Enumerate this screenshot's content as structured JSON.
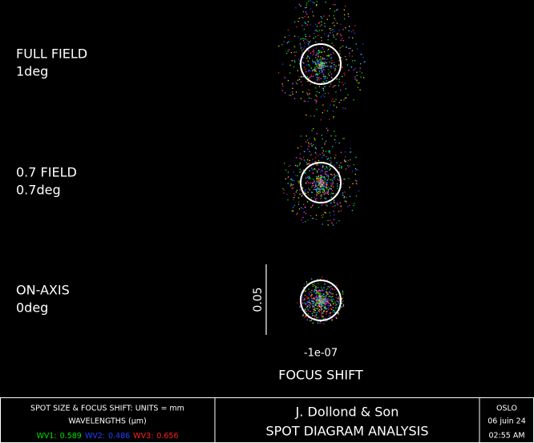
{
  "fields": [
    {
      "name": "FULL FIELD",
      "angle": "1deg"
    },
    {
      "name": "0.7 FIELD",
      "angle": "0.7deg"
    },
    {
      "name": "ON-AXIS",
      "angle": "0deg"
    }
  ],
  "scale_label": "0.05",
  "focus_shift_value": "-1e-07",
  "focus_shift_title": "FOCUS SHIFT",
  "footer": {
    "units": "SPOT SIZE & FOCUS SHIFT: UNITS = mm",
    "wavelengths_title": "WAVELENGTHS (μm)",
    "wavelengths": [
      {
        "label": "WV1:",
        "value": "0.589",
        "color": "#00e000"
      },
      {
        "label": "WV2:",
        "value": "0.486",
        "color": "#2040ff"
      },
      {
        "label": "WV3:",
        "value": "0.656",
        "color": "#ff2020"
      }
    ],
    "company": "J. Dollond & Son",
    "analysis": "SPOT DIAGRAM ANALYSIS",
    "program": "OSLO",
    "date": "06 juin 24",
    "time": "02:55 AM"
  }
}
